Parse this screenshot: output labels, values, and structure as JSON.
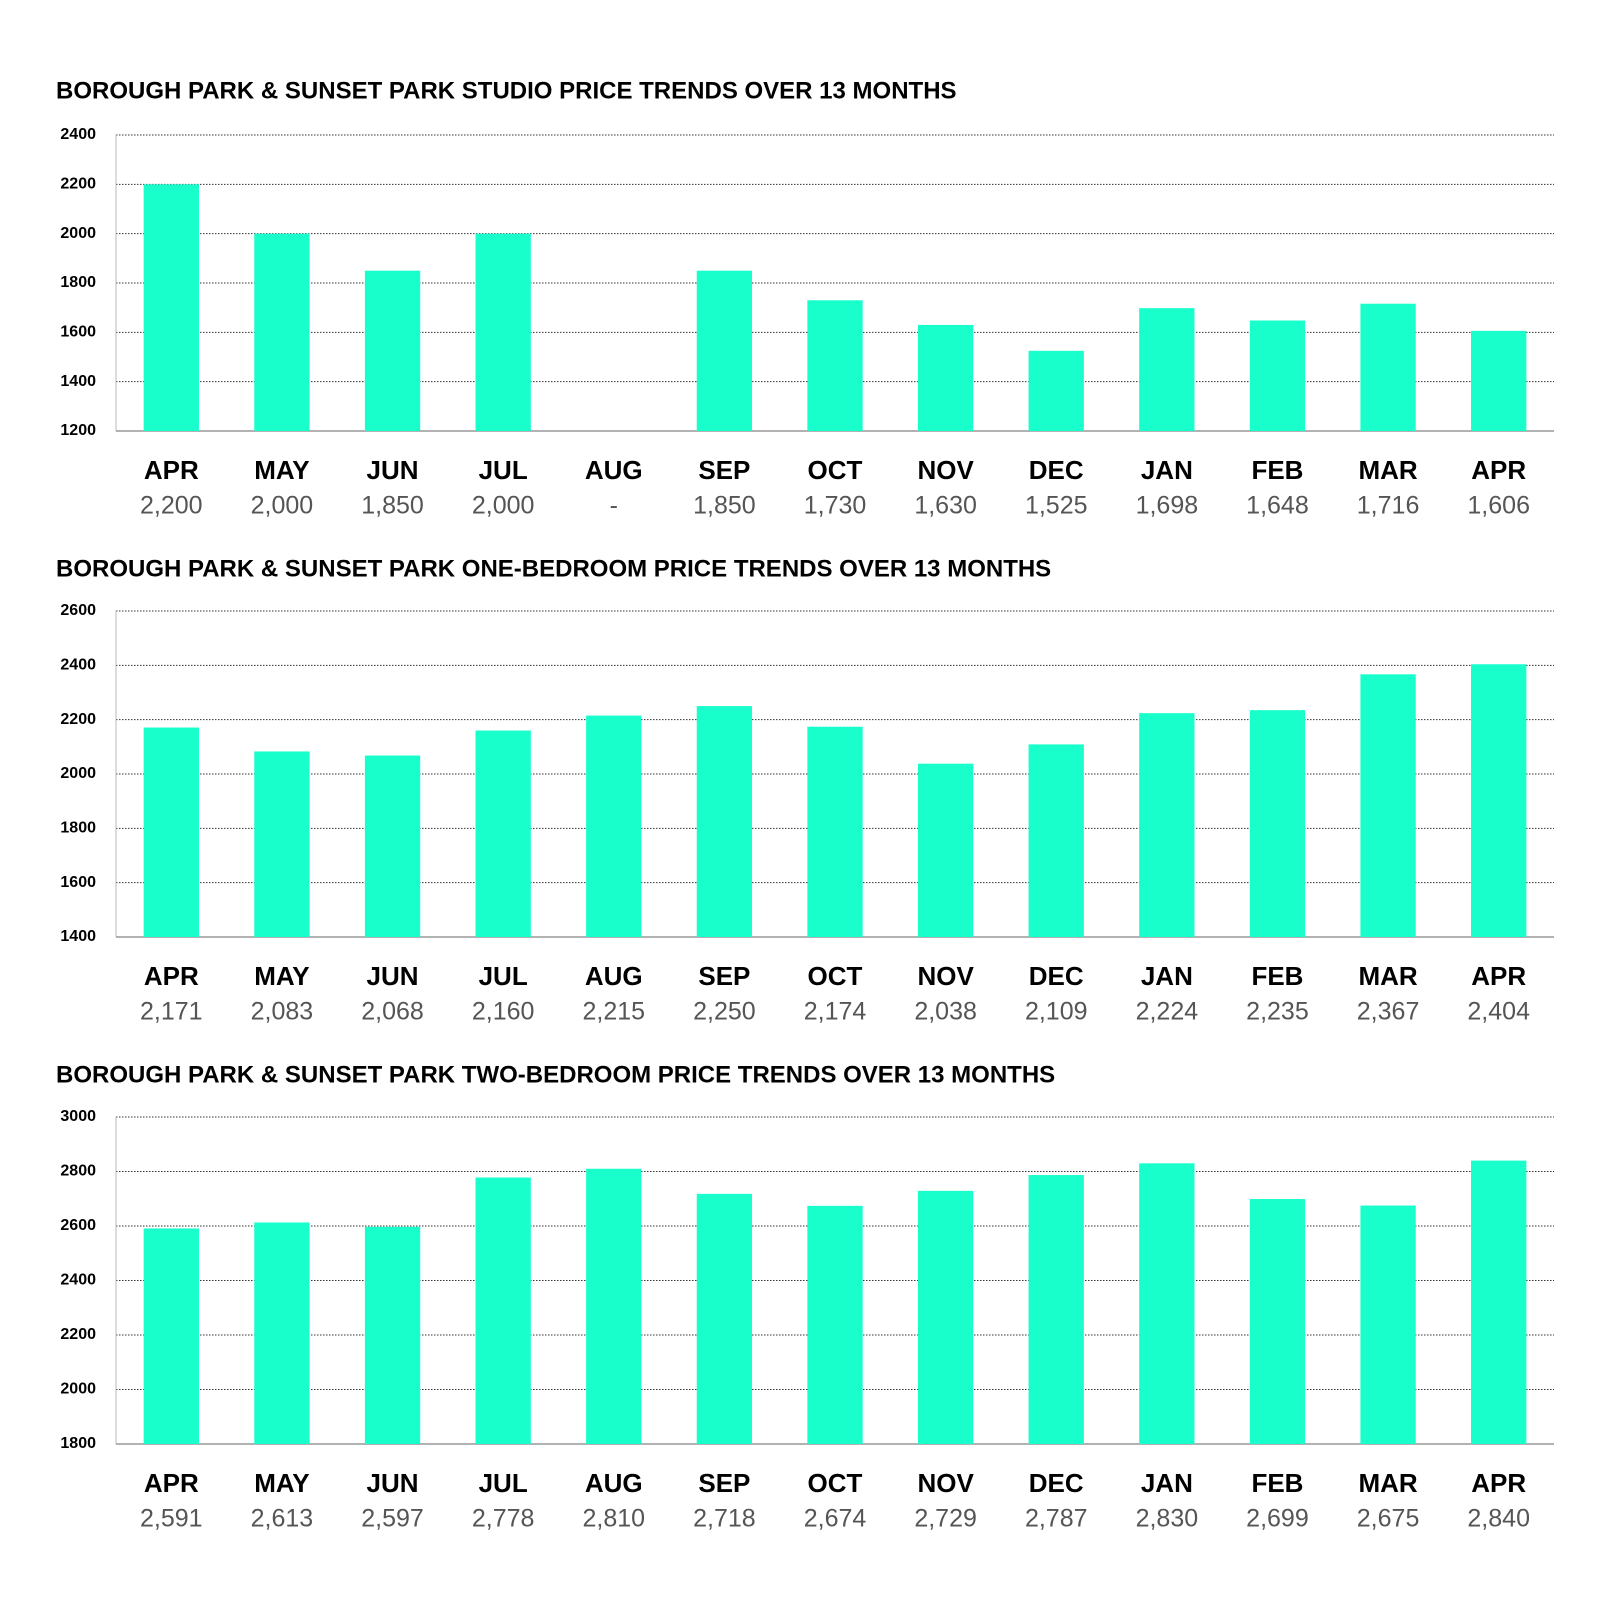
{
  "chart_data": [
    {
      "type": "bar",
      "title": "BOROUGH PARK & SUNSET PARK STUDIO PRICE TRENDS OVER 13 MONTHS",
      "categories": [
        "APR",
        "MAY",
        "JUN",
        "JUL",
        "AUG",
        "SEP",
        "OCT",
        "NOV",
        "DEC",
        "JAN",
        "FEB",
        "MAR",
        "APR"
      ],
      "values": [
        2200,
        2000,
        1850,
        2000,
        null,
        1850,
        1730,
        1630,
        1525,
        1698,
        1648,
        1716,
        1606
      ],
      "value_labels": [
        "2,200",
        "2,000",
        "1,850",
        "2,000",
        "-",
        "1,850",
        "1,730",
        "1,630",
        "1,525",
        "1,698",
        "1,648",
        "1,716",
        "1,606"
      ],
      "color": "#19ffcc",
      "ylim": [
        1200,
        2400
      ],
      "yticks": [
        1200,
        1400,
        1600,
        1800,
        2000,
        2200,
        2400
      ],
      "grid": true
    },
    {
      "type": "bar",
      "title": "BOROUGH PARK & SUNSET PARK ONE-BEDROOM PRICE TRENDS OVER 13 MONTHS",
      "categories": [
        "APR",
        "MAY",
        "JUN",
        "JUL",
        "AUG",
        "SEP",
        "OCT",
        "NOV",
        "DEC",
        "JAN",
        "FEB",
        "MAR",
        "APR"
      ],
      "values": [
        2171,
        2083,
        2068,
        2160,
        2215,
        2250,
        2174,
        2038,
        2109,
        2224,
        2235,
        2367,
        2404
      ],
      "value_labels": [
        "2,171",
        "2,083",
        "2,068",
        "2,160",
        "2,215",
        "2,250",
        "2,174",
        "2,038",
        "2,109",
        "2,224",
        "2,235",
        "2,367",
        "2,404"
      ],
      "color": "#19ffcc",
      "ylim": [
        1400,
        2600
      ],
      "yticks": [
        1400,
        1600,
        1800,
        2000,
        2200,
        2400,
        2600
      ],
      "grid": true
    },
    {
      "type": "bar",
      "title": "BOROUGH PARK & SUNSET PARK  TWO-BEDROOM PRICE TRENDS OVER 13 MONTHS",
      "categories": [
        "APR",
        "MAY",
        "JUN",
        "JUL",
        "AUG",
        "SEP",
        "OCT",
        "NOV",
        "DEC",
        "JAN",
        "FEB",
        "MAR",
        "APR"
      ],
      "values": [
        2591,
        2613,
        2597,
        2778,
        2810,
        2718,
        2674,
        2729,
        2787,
        2830,
        2699,
        2675,
        2840
      ],
      "value_labels": [
        "2,591",
        "2,613",
        "2,597",
        "2,778",
        "2,810",
        "2,718",
        "2,674",
        "2,729",
        "2,787",
        "2,830",
        "2,699",
        "2,675",
        "2,840"
      ],
      "color": "#19ffcc",
      "ylim": [
        1800,
        3000
      ],
      "yticks": [
        1800,
        2000,
        2200,
        2400,
        2600,
        2800,
        3000
      ],
      "grid": true
    }
  ]
}
